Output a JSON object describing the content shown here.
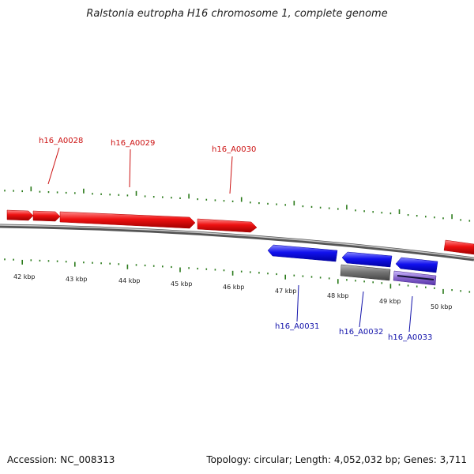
{
  "title": "Ralstonia eutropha H16 chromosome 1, complete genome",
  "footer": {
    "accession": "Accession: NC_008313",
    "summary": "Topology: circular; Length: 4,052,032 bp; Genes: 3,711"
  },
  "colors": {
    "forward_gene": "#ee1111",
    "reverse_gene": "#1111ee",
    "tick": "#2a7a1a",
    "backbone": "#888888",
    "grey_feature": "#777777",
    "purple_feature": "#8866cc"
  },
  "scale": {
    "ticks": [
      "42 kbp",
      "43 kbp",
      "44 kbp",
      "45 kbp",
      "46 kbp",
      "47 kbp",
      "48 kbp",
      "49 kbp",
      "50 kbp"
    ]
  },
  "genes_forward": [
    {
      "label": "h16_A0028"
    },
    {
      "label": "h16_A0029"
    },
    {
      "label": "h16_A0030"
    }
  ],
  "genes_reverse": [
    {
      "label": "h16_A0031"
    },
    {
      "label": "h16_A0032"
    },
    {
      "label": "h16_A0033"
    }
  ]
}
